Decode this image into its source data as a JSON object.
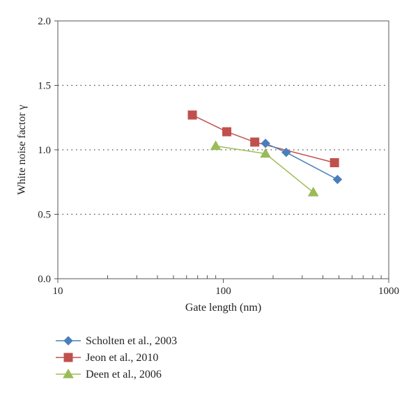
{
  "chart_data": {
    "type": "scatter",
    "title": "",
    "xlabel": "Gate length (nm)",
    "ylabel": "White noise factor γ",
    "xscale": "log",
    "xlim": [
      10,
      1000
    ],
    "ylim": [
      0,
      2.0
    ],
    "xticks": [
      "10",
      "100",
      "1000"
    ],
    "yticks": [
      "0.0",
      "0.5",
      "1.0",
      "1.5",
      "2.0"
    ],
    "grid": "horizontal dotted",
    "legend_position": "bottom",
    "series": [
      {
        "name": "Scholten et al., 2003",
        "marker": "diamond",
        "color": "#4a7ebb",
        "x": [
          180,
          240,
          490
        ],
        "y": [
          1.05,
          0.98,
          0.77
        ]
      },
      {
        "name": "Jeon et al., 2010",
        "marker": "square",
        "color": "#c0504d",
        "x": [
          65,
          105,
          155,
          470
        ],
        "y": [
          1.27,
          1.14,
          1.06,
          0.9
        ]
      },
      {
        "name": "Deen et al., 2006",
        "marker": "triangle",
        "color": "#9bbb59",
        "x": [
          90,
          180,
          350
        ],
        "y": [
          1.03,
          0.97,
          0.67
        ]
      }
    ]
  }
}
